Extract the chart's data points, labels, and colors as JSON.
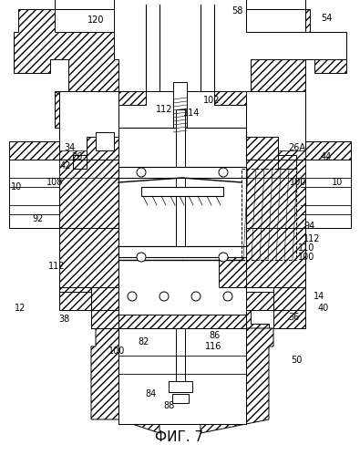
{
  "fig_label": "ФИГ. 7",
  "background_color": "#ffffff",
  "labels": [
    [
      "120",
      105,
      22
    ],
    [
      "58",
      258,
      12
    ],
    [
      "54",
      355,
      20
    ],
    [
      "112",
      178,
      120
    ],
    [
      "114",
      208,
      122
    ],
    [
      "102",
      228,
      108
    ],
    [
      "34",
      75,
      162
    ],
    [
      "26",
      82,
      172
    ],
    [
      "42",
      70,
      182
    ],
    [
      "10",
      18,
      205
    ],
    [
      "108",
      60,
      198
    ],
    [
      "26A",
      325,
      162
    ],
    [
      "44",
      355,
      172
    ],
    [
      "10",
      368,
      200
    ],
    [
      "100",
      325,
      200
    ],
    [
      "92",
      55,
      240
    ],
    [
      "94",
      332,
      248
    ],
    [
      "112",
      335,
      262
    ],
    [
      "110",
      328,
      272
    ],
    [
      "100",
      328,
      282
    ],
    [
      "112",
      65,
      292
    ],
    [
      "12",
      25,
      338
    ],
    [
      "38",
      68,
      348
    ],
    [
      "14",
      348,
      325
    ],
    [
      "40",
      352,
      338
    ],
    [
      "36",
      320,
      345
    ],
    [
      "82",
      152,
      375
    ],
    [
      "100",
      122,
      385
    ],
    [
      "86",
      232,
      368
    ],
    [
      "116",
      230,
      380
    ],
    [
      "50",
      322,
      395
    ],
    [
      "84",
      162,
      432
    ],
    [
      "88",
      182,
      445
    ]
  ]
}
